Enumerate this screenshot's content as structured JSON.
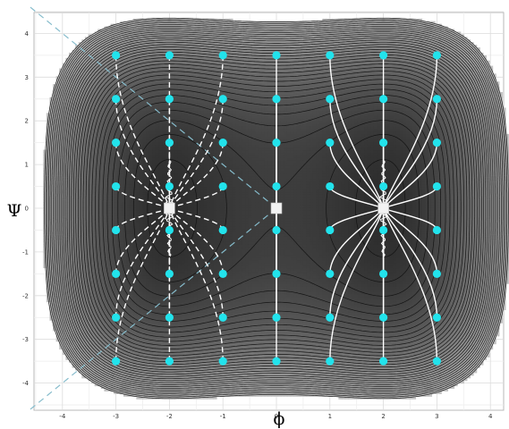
{
  "chart_data": {
    "type": "contour",
    "xlabel": "ϕ",
    "ylabel": "Ψ",
    "xlim": [
      -4.6,
      4.6
    ],
    "ylim": [
      -4.6,
      4.6
    ],
    "xticks": [
      "-4",
      "-3",
      "-2",
      "-1",
      "0",
      "1",
      "2",
      "3",
      "4"
    ],
    "yticks": [
      "4",
      "3",
      "2",
      "1",
      "0",
      "-1",
      "-2",
      "-3",
      "-4"
    ],
    "grid": true,
    "potential": {
      "description_of_levels": "nested closed contours of V(ϕ,Ψ), darker toward two minima",
      "minima": [
        [
          -2,
          0
        ],
        [
          2,
          0
        ]
      ],
      "saddle": [
        0,
        0
      ],
      "contour_count": 34
    },
    "initial_points": {
      "x": [
        -3,
        -2,
        -1,
        0,
        1,
        2,
        3
      ],
      "y": [
        3.5,
        2.5,
        1.5,
        0.5,
        -0.5,
        -1.5,
        -2.5,
        -3.5
      ],
      "color": "#22e3ec"
    },
    "trajectories": {
      "solid_color": "#ffffff",
      "dashed_side": "phi<0",
      "attractors": [
        [
          -2,
          0
        ],
        [
          0,
          0
        ],
        [
          2,
          0
        ]
      ]
    },
    "diagonals": {
      "lines": [
        [
          [
            -4.6,
            4.6
          ],
          [
            0,
            0
          ]
        ],
        [
          [
            -4.6,
            -4.6
          ],
          [
            0,
            0
          ]
        ]
      ],
      "color": "#86bccc",
      "style": "dashed"
    }
  }
}
